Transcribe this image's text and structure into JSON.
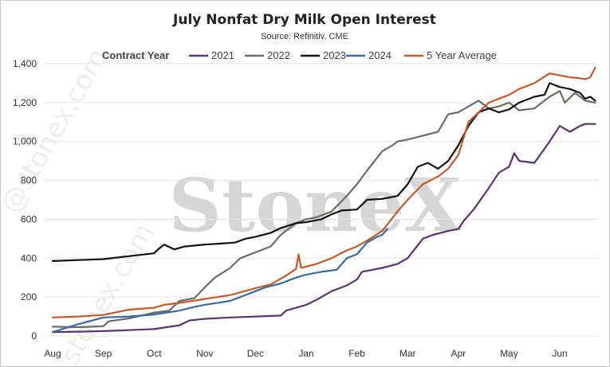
{
  "chart_data": {
    "type": "line",
    "title": "July Nonfat Dry Milk Open Interest",
    "subtitle": "Source: Refinitiv, CME",
    "legend_title": "Contract Year",
    "legend_position": "top",
    "grid": true,
    "ylim": [
      0,
      1400
    ],
    "y_ticks": [
      "0",
      "200",
      "400",
      "600",
      "800",
      "1,000",
      "1,200",
      "1,400"
    ],
    "x_ticks": [
      "Aug",
      "Sep",
      "Oct",
      "Nov",
      "Dec",
      "Jan",
      "Feb",
      "Mar",
      "Apr",
      "May",
      "Jun"
    ],
    "series": [
      {
        "name": "2021",
        "color": "#5a3470",
        "points": [
          [
            0,
            20
          ],
          [
            0.5,
            22
          ],
          [
            1,
            25
          ],
          [
            1.5,
            30
          ],
          [
            2,
            35
          ],
          [
            2.5,
            55
          ],
          [
            2.7,
            80
          ],
          [
            3,
            88
          ],
          [
            3.5,
            95
          ],
          [
            4,
            100
          ],
          [
            4.5,
            105
          ],
          [
            4.6,
            130
          ],
          [
            5,
            160
          ],
          [
            5.2,
            185
          ],
          [
            5.5,
            230
          ],
          [
            5.8,
            260
          ],
          [
            6,
            290
          ],
          [
            6.1,
            330
          ],
          [
            6.5,
            350
          ],
          [
            6.8,
            370
          ],
          [
            7,
            400
          ],
          [
            7.3,
            500
          ],
          [
            7.5,
            520
          ],
          [
            7.8,
            540
          ],
          [
            8,
            550
          ],
          [
            8.1,
            590
          ],
          [
            8.3,
            650
          ],
          [
            8.6,
            760
          ],
          [
            8.8,
            840
          ],
          [
            9,
            870
          ],
          [
            9.1,
            940
          ],
          [
            9.2,
            900
          ],
          [
            9.5,
            890
          ],
          [
            9.8,
            1000
          ],
          [
            10,
            1080
          ],
          [
            10.2,
            1050
          ],
          [
            10.4,
            1080
          ],
          [
            10.5,
            1090
          ],
          [
            10.7,
            1090
          ]
        ]
      },
      {
        "name": "2022",
        "color": "#6b6b66",
        "points": [
          [
            0,
            48
          ],
          [
            0.5,
            45
          ],
          [
            1,
            50
          ],
          [
            1.1,
            75
          ],
          [
            1.5,
            90
          ],
          [
            2,
            120
          ],
          [
            2.3,
            130
          ],
          [
            2.5,
            180
          ],
          [
            2.8,
            195
          ],
          [
            3,
            250
          ],
          [
            3.2,
            300
          ],
          [
            3.5,
            350
          ],
          [
            3.7,
            400
          ],
          [
            4,
            430
          ],
          [
            4.3,
            460
          ],
          [
            4.5,
            520
          ],
          [
            4.8,
            580
          ],
          [
            5,
            600
          ],
          [
            5.2,
            610
          ],
          [
            5.5,
            640
          ],
          [
            5.8,
            720
          ],
          [
            6,
            780
          ],
          [
            6.2,
            850
          ],
          [
            6.5,
            950
          ],
          [
            6.7,
            980
          ],
          [
            6.8,
            1000
          ],
          [
            7,
            1010
          ],
          [
            7.3,
            1030
          ],
          [
            7.6,
            1050
          ],
          [
            7.8,
            1140
          ],
          [
            8,
            1150
          ],
          [
            8.2,
            1180
          ],
          [
            8.4,
            1210
          ],
          [
            8.6,
            1170
          ],
          [
            8.8,
            1180
          ],
          [
            9,
            1200
          ],
          [
            9.2,
            1160
          ],
          [
            9.5,
            1170
          ],
          [
            9.8,
            1230
          ],
          [
            10,
            1260
          ],
          [
            10.1,
            1200
          ],
          [
            10.3,
            1250
          ],
          [
            10.5,
            1210
          ],
          [
            10.7,
            1200
          ]
        ]
      },
      {
        "name": "2023",
        "color": "#111111",
        "points": [
          [
            0,
            385
          ],
          [
            0.5,
            390
          ],
          [
            1,
            395
          ],
          [
            1.5,
            410
          ],
          [
            2,
            425
          ],
          [
            2.1,
            450
          ],
          [
            2.2,
            470
          ],
          [
            2.4,
            445
          ],
          [
            2.6,
            460
          ],
          [
            3,
            470
          ],
          [
            3.3,
            475
          ],
          [
            3.6,
            480
          ],
          [
            3.8,
            500
          ],
          [
            4,
            510
          ],
          [
            4.3,
            530
          ],
          [
            4.5,
            555
          ],
          [
            4.8,
            580
          ],
          [
            5,
            585
          ],
          [
            5.3,
            600
          ],
          [
            5.5,
            625
          ],
          [
            5.7,
            645
          ],
          [
            6,
            650
          ],
          [
            6.2,
            700
          ],
          [
            6.5,
            705
          ],
          [
            6.8,
            720
          ],
          [
            7,
            780
          ],
          [
            7.2,
            870
          ],
          [
            7.4,
            890
          ],
          [
            7.6,
            860
          ],
          [
            7.8,
            900
          ],
          [
            8,
            980
          ],
          [
            8.2,
            1080
          ],
          [
            8.4,
            1150
          ],
          [
            8.6,
            1170
          ],
          [
            8.8,
            1150
          ],
          [
            9,
            1165
          ],
          [
            9.2,
            1200
          ],
          [
            9.4,
            1220
          ],
          [
            9.5,
            1230
          ],
          [
            9.7,
            1240
          ],
          [
            9.8,
            1300
          ],
          [
            10,
            1280
          ],
          [
            10.2,
            1270
          ],
          [
            10.4,
            1250
          ],
          [
            10.5,
            1220
          ],
          [
            10.6,
            1230
          ],
          [
            10.7,
            1210
          ]
        ]
      },
      {
        "name": "2024",
        "color": "#3b6aa0",
        "points": [
          [
            0,
            20
          ],
          [
            0.5,
            60
          ],
          [
            1,
            95
          ],
          [
            1.5,
            100
          ],
          [
            2,
            110
          ],
          [
            2.5,
            130
          ],
          [
            2.8,
            150
          ],
          [
            3,
            160
          ],
          [
            3.5,
            180
          ],
          [
            4,
            230
          ],
          [
            4.2,
            250
          ],
          [
            4.5,
            270
          ],
          [
            4.8,
            300
          ],
          [
            5,
            315
          ],
          [
            5.3,
            330
          ],
          [
            5.6,
            340
          ],
          [
            5.8,
            400
          ],
          [
            6,
            420
          ],
          [
            6.2,
            480
          ],
          [
            6.4,
            510
          ],
          [
            6.5,
            520
          ],
          [
            6.6,
            550
          ]
        ]
      },
      {
        "name": "5 Year Average",
        "color": "#c4592a",
        "points": [
          [
            0,
            95
          ],
          [
            0.5,
            100
          ],
          [
            1,
            108
          ],
          [
            1.5,
            135
          ],
          [
            2,
            145
          ],
          [
            2.2,
            160
          ],
          [
            2.5,
            170
          ],
          [
            3,
            190
          ],
          [
            3.5,
            210
          ],
          [
            4,
            245
          ],
          [
            4.3,
            265
          ],
          [
            4.6,
            310
          ],
          [
            4.8,
            345
          ],
          [
            4.85,
            420
          ],
          [
            4.9,
            350
          ],
          [
            5.2,
            370
          ],
          [
            5.5,
            400
          ],
          [
            5.8,
            440
          ],
          [
            6,
            460
          ],
          [
            6.2,
            490
          ],
          [
            6.5,
            540
          ],
          [
            6.8,
            640
          ],
          [
            7,
            700
          ],
          [
            7.3,
            780
          ],
          [
            7.6,
            820
          ],
          [
            7.8,
            860
          ],
          [
            8,
            930
          ],
          [
            8.2,
            1100
          ],
          [
            8.4,
            1150
          ],
          [
            8.6,
            1200
          ],
          [
            8.8,
            1220
          ],
          [
            9,
            1240
          ],
          [
            9.2,
            1270
          ],
          [
            9.5,
            1300
          ],
          [
            9.8,
            1350
          ],
          [
            10,
            1340
          ],
          [
            10.2,
            1330
          ],
          [
            10.4,
            1325
          ],
          [
            10.5,
            1320
          ],
          [
            10.6,
            1330
          ],
          [
            10.7,
            1380
          ]
        ]
      }
    ]
  }
}
